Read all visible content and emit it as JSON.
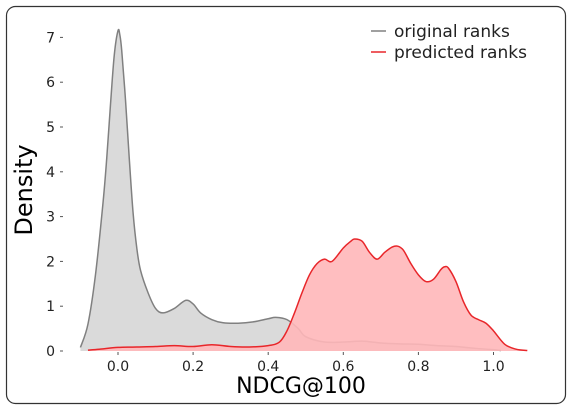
{
  "chart_data": {
    "type": "area",
    "xlabel": "NDCG@100",
    "ylabel": "Density",
    "xlim": [
      -0.15,
      1.12
    ],
    "ylim": [
      0,
      7.4
    ],
    "xticks": [
      0.0,
      0.2,
      0.4,
      0.6,
      0.8,
      1.0
    ],
    "xtick_labels": [
      "0.0",
      "0.2",
      "0.4",
      "0.6",
      "0.8",
      "1.0"
    ],
    "yticks": [
      0,
      1,
      2,
      3,
      4,
      5,
      6,
      7
    ],
    "ytick_labels": [
      "0",
      "1",
      "2",
      "3",
      "4",
      "5",
      "6",
      "7"
    ],
    "grid": false,
    "legend_position": "top-right",
    "series": [
      {
        "name": "original ranks",
        "line_color": "#808080",
        "fill_color": "#d3d3d3",
        "x": [
          -0.1,
          -0.08,
          -0.06,
          -0.04,
          -0.03,
          -0.02,
          -0.01,
          0.0,
          0.005,
          0.01,
          0.02,
          0.03,
          0.04,
          0.05,
          0.06,
          0.08,
          0.1,
          0.12,
          0.15,
          0.18,
          0.2,
          0.22,
          0.25,
          0.28,
          0.32,
          0.36,
          0.4,
          0.42,
          0.45,
          0.48,
          0.5,
          0.55,
          0.6,
          0.65,
          0.7,
          0.75,
          0.8,
          0.85,
          0.9,
          0.95,
          1.0,
          1.02
        ],
        "y": [
          0.08,
          0.6,
          1.7,
          3.3,
          4.3,
          5.5,
          6.6,
          7.15,
          7.05,
          6.7,
          5.6,
          4.3,
          3.1,
          2.3,
          1.8,
          1.3,
          0.95,
          0.85,
          0.95,
          1.13,
          1.05,
          0.85,
          0.7,
          0.63,
          0.62,
          0.65,
          0.72,
          0.75,
          0.7,
          0.5,
          0.32,
          0.2,
          0.2,
          0.22,
          0.18,
          0.16,
          0.15,
          0.12,
          0.1,
          0.06,
          0.03,
          0.01
        ]
      },
      {
        "name": "predicted ranks",
        "line_color": "#e8262a",
        "fill_color": "#ffb7b9",
        "x": [
          -0.08,
          -0.05,
          0.0,
          0.05,
          0.1,
          0.15,
          0.2,
          0.25,
          0.3,
          0.35,
          0.4,
          0.43,
          0.45,
          0.47,
          0.49,
          0.51,
          0.53,
          0.55,
          0.57,
          0.6,
          0.62,
          0.63,
          0.65,
          0.67,
          0.69,
          0.71,
          0.73,
          0.745,
          0.76,
          0.78,
          0.8,
          0.82,
          0.84,
          0.86,
          0.87,
          0.88,
          0.9,
          0.92,
          0.94,
          0.96,
          0.98,
          1.0,
          1.03,
          1.06,
          1.09
        ],
        "y": [
          0.02,
          0.04,
          0.08,
          0.09,
          0.1,
          0.12,
          0.1,
          0.14,
          0.1,
          0.09,
          0.12,
          0.2,
          0.45,
          0.85,
          1.3,
          1.7,
          1.95,
          2.05,
          2.0,
          2.3,
          2.45,
          2.5,
          2.45,
          2.2,
          2.05,
          2.2,
          2.32,
          2.34,
          2.25,
          1.95,
          1.7,
          1.55,
          1.6,
          1.82,
          1.88,
          1.85,
          1.55,
          1.1,
          0.8,
          0.7,
          0.62,
          0.45,
          0.15,
          0.04,
          0.01
        ]
      }
    ]
  }
}
